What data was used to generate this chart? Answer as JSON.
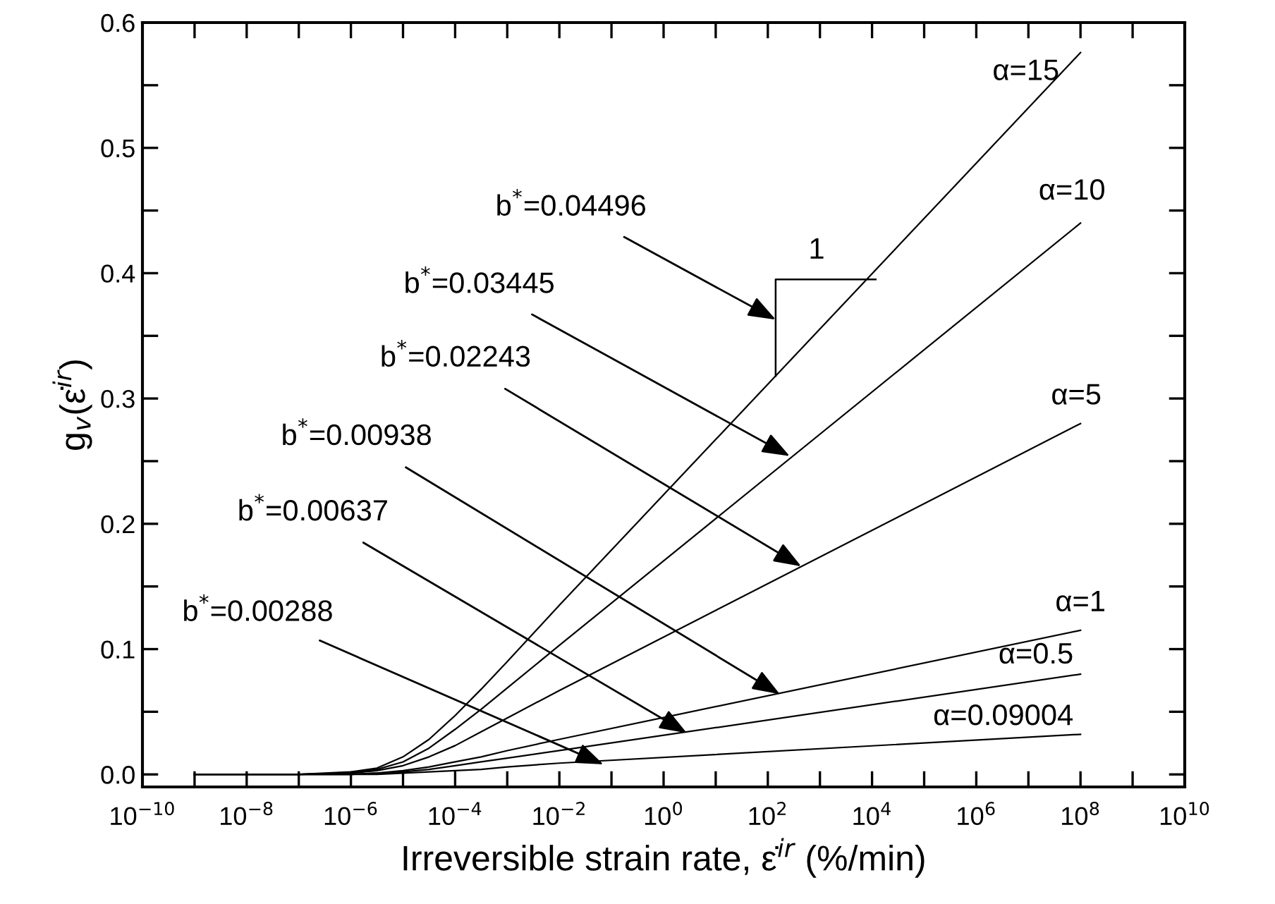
{
  "chart_data": {
    "type": "line",
    "xlabel": "Irreversible strain rate, ε̇$^{ir}$ (%/min)",
    "ylabel": "g$_{v}$(ε̇$^{ir}$)",
    "x": [
      1e-09,
      1e-07,
      1e-06,
      3.16e-06,
      1e-05,
      3.16e-05,
      0.0001,
      0.000316,
      0.001,
      0.01,
      100000000.0
    ],
    "series": [
      {
        "name": "α=15",
        "color": "#000000",
        "values": [
          0,
          0.0,
          0.002,
          0.005,
          0.014,
          0.028,
          0.047,
          0.068,
          0.09,
          0.135,
          0.576
        ]
      },
      {
        "name": "α=10",
        "color": "#000000",
        "values": [
          0,
          0.0,
          0.001,
          0.004,
          0.01,
          0.021,
          0.036,
          0.052,
          0.069,
          0.103,
          0.44
        ]
      },
      {
        "name": "α=5",
        "color": "#000000",
        "values": [
          0,
          0.0,
          0.001,
          0.003,
          0.007,
          0.014,
          0.023,
          0.034,
          0.045,
          0.067,
          0.28
        ]
      },
      {
        "name": "α=1",
        "color": "#000000",
        "values": [
          0,
          0.0,
          0.0,
          0.001,
          0.003,
          0.006,
          0.01,
          0.014,
          0.019,
          0.028,
          0.115
        ]
      },
      {
        "name": "α=0.5",
        "color": "#000000",
        "values": [
          0,
          0.0,
          0.0,
          0.001,
          0.002,
          0.004,
          0.007,
          0.01,
          0.013,
          0.019,
          0.08
        ]
      },
      {
        "name": "α=0.09004",
        "color": "#000000",
        "values": [
          0,
          0.0,
          0.0,
          0.0,
          0.001,
          0.002,
          0.003,
          0.004,
          0.006,
          0.009,
          0.032
        ]
      }
    ],
    "log": "x",
    "xlim": [
      1e-10,
      10000000000.0
    ],
    "xticks": [
      {
        "value": 1e-10,
        "label": "10$^{−10}$"
      },
      {
        "value": 1e-09,
        "label": null
      },
      {
        "value": 1e-08,
        "label": "10$^{−8}$"
      },
      {
        "value": 1e-07,
        "label": null
      },
      {
        "value": 1e-06,
        "label": "10$^{−6}$"
      },
      {
        "value": 1e-05,
        "label": null
      },
      {
        "value": 0.0001,
        "label": "10$^{−4}$"
      },
      {
        "value": 0.001,
        "label": null
      },
      {
        "value": 0.01,
        "label": "10$^{−2}$"
      },
      {
        "value": 0.1,
        "label": null
      },
      {
        "value": 1,
        "label": "10$^{0}$"
      },
      {
        "value": 10,
        "label": null
      },
      {
        "value": 100,
        "label": "10$^{2}$"
      },
      {
        "value": 1000,
        "label": null
      },
      {
        "value": 10000.0,
        "label": "10$^{4}$"
      },
      {
        "value": 100000.0,
        "label": null
      },
      {
        "value": 1000000.0,
        "label": "10$^{6}$"
      },
      {
        "value": 10000000.0,
        "label": null
      },
      {
        "value": 100000000.0,
        "label": "10$^{8}$"
      },
      {
        "value": 1000000000.0,
        "label": null
      },
      {
        "value": 10000000000.0,
        "label": "10$^{10}$"
      }
    ],
    "ylim": [
      -0.01,
      0.6
    ],
    "yticks": [
      {
        "value": 0.0,
        "label": "0.0"
      },
      {
        "value": 0.05,
        "label": null
      },
      {
        "value": 0.1,
        "label": "0.1"
      },
      {
        "value": 0.15,
        "label": null
      },
      {
        "value": 0.2,
        "label": "0.2"
      },
      {
        "value": 0.25,
        "label": null
      },
      {
        "value": 0.3,
        "label": "0.3"
      },
      {
        "value": 0.35,
        "label": null
      },
      {
        "value": 0.4,
        "label": "0.4"
      },
      {
        "value": 0.45,
        "label": null
      },
      {
        "value": 0.5,
        "label": "0.5"
      },
      {
        "value": 0.55,
        "label": null
      },
      {
        "value": 0.6,
        "label": "0.6"
      }
    ],
    "annotations": [
      "b$^{*}$=0.04496",
      {
        "text": "b$^{*}$=0.03445",
        "x": 263,
        "y": 0.254
      },
      {
        "text": "b$^{*}$=0.02243",
        "x": 437,
        "y": 0.166
      },
      {
        "text": "b$^{*}$=0.00938",
        "x": 170,
        "y": 0.064
      },
      {
        "text": "b$^{*}$=0.00637",
        "x": 2.8,
        "y": 0.033
      },
      {
        "text": "b$^{*}$=0.00288",
        "x": 0.07,
        "y": 0.008
      },
      "1"
    ],
    "grid": false,
    "legend": "right",
    "marker": "none",
    "line_style": "solid"
  }
}
